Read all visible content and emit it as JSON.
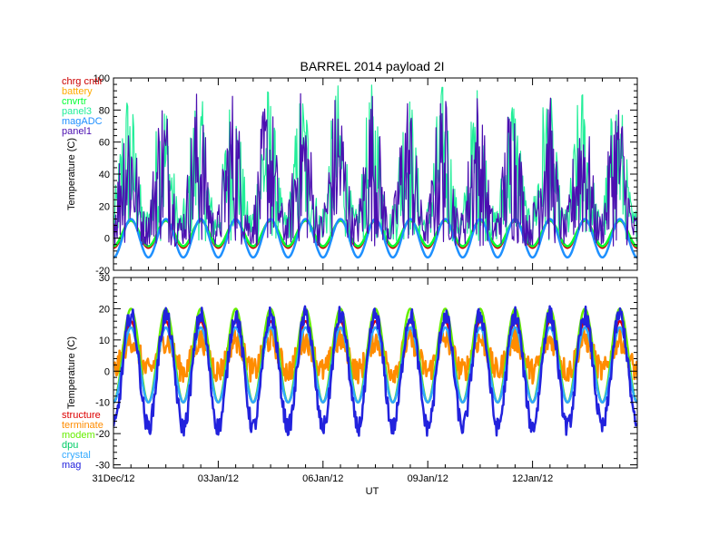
{
  "chart_data": [
    {
      "type": "line",
      "title": "BARREL 2014 payload 2I",
      "ylabel": "Temperature (C)",
      "xlabel": "",
      "ylim": [
        -20,
        100
      ],
      "yticks": [
        -20,
        0,
        20,
        40,
        60,
        80,
        100
      ],
      "yticklabels": [
        "-20",
        "0",
        "20",
        "40",
        "60",
        "80",
        "100"
      ],
      "xlim": [
        0,
        15
      ],
      "xticks": [
        0,
        3,
        6,
        9,
        12
      ],
      "xticklabels": [],
      "legend_position": "top-left",
      "grid": false,
      "series": [
        {
          "name": "chrg cntlr",
          "color": "#cc0000",
          "mean": 2.5,
          "amplitude": 8.5,
          "noise": 0,
          "base": 0
        },
        {
          "name": "battery",
          "color": "#ffaa00",
          "mean": 3,
          "amplitude": 8,
          "noise": 0,
          "base": 0
        },
        {
          "name": "cnvrtr",
          "color": "#00ff33",
          "mean": 3,
          "amplitude": 8,
          "noise": 0,
          "base": 0
        },
        {
          "name": "panel3",
          "color": "#22ee99",
          "mean": 30,
          "amplitude": 28,
          "noise": 40,
          "base": -12
        },
        {
          "name": "magADC",
          "color": "#1e90ff",
          "mean": 0,
          "amplitude": 12,
          "noise": 0,
          "base": 0
        },
        {
          "name": "panel1",
          "color": "#4b0fb0",
          "mean": 28,
          "amplitude": 30,
          "noise": 45,
          "base": -15
        }
      ]
    },
    {
      "type": "line",
      "title": "",
      "ylabel": "Temperature (C)",
      "xlabel": "UT",
      "ylim": [
        -31,
        30
      ],
      "yticks": [
        -30,
        -20,
        -10,
        0,
        10,
        20,
        30
      ],
      "yticklabels": [
        "-30",
        "-20",
        "-10",
        "0",
        "10",
        "20",
        "30"
      ],
      "xlim": [
        0,
        15
      ],
      "xticks": [
        0,
        3,
        6,
        9,
        12
      ],
      "xticklabels": [
        "31Dec/12",
        "03Jan/12",
        "06Jan/12",
        "09Jan/12",
        "12Jan/12"
      ],
      "legend_position": "bottom-left",
      "grid": false,
      "series": [
        {
          "name": "structure",
          "color": "#dd0000",
          "mean": 3,
          "amplitude": 13,
          "noise": 0
        },
        {
          "name": "terminate",
          "color": "#ff8c00",
          "mean": 5,
          "amplitude": 5,
          "noise": 4
        },
        {
          "name": "modem",
          "color": "#66ee00",
          "mean": 5,
          "amplitude": 15,
          "noise": 0
        },
        {
          "name": "dpu",
          "color": "#00cc66",
          "mean": 2,
          "amplitude": 12,
          "noise": 0
        },
        {
          "name": "crystal",
          "color": "#33aaff",
          "mean": 2,
          "amplitude": 12,
          "noise": 0
        },
        {
          "name": "mag",
          "color": "#2222dd",
          "mean": 0,
          "amplitude": 18,
          "noise": 3
        }
      ]
    }
  ]
}
